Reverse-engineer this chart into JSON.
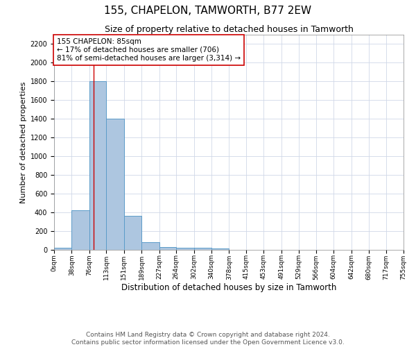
{
  "title": "155, CHAPELON, TAMWORTH, B77 2EW",
  "subtitle": "Size of property relative to detached houses in Tamworth",
  "xlabel": "Distribution of detached houses by size in Tamworth",
  "ylabel": "Number of detached properties",
  "bin_edges": [
    0,
    38,
    76,
    113,
    151,
    189,
    227,
    264,
    302,
    340,
    378,
    415,
    453,
    491,
    529,
    566,
    604,
    642,
    680,
    717,
    755
  ],
  "bar_heights": [
    20,
    420,
    1800,
    1400,
    360,
    80,
    30,
    25,
    20,
    15,
    0,
    0,
    0,
    0,
    0,
    0,
    0,
    0,
    0,
    0
  ],
  "bar_color": "#adc6e0",
  "bar_edge_color": "#5b9bc8",
  "bar_edge_width": 0.7,
  "red_line_x": 85,
  "red_line_color": "#cc0000",
  "ylim": [
    0,
    2300
  ],
  "yticks": [
    0,
    200,
    400,
    600,
    800,
    1000,
    1200,
    1400,
    1600,
    1800,
    2000,
    2200
  ],
  "annotation_text": "155 CHAPELON: 85sqm\n← 17% of detached houses are smaller (706)\n81% of semi-detached houses are larger (3,314) →",
  "annotation_fontsize": 7.5,
  "annotation_box_color": "#ffffff",
  "annotation_box_edge": "#cc0000",
  "title_fontsize": 11,
  "subtitle_fontsize": 9,
  "xlabel_fontsize": 8.5,
  "ylabel_fontsize": 8,
  "footer_text": "Contains HM Land Registry data © Crown copyright and database right 2024.\nContains public sector information licensed under the Open Government Licence v3.0.",
  "footer_fontsize": 6.5,
  "bg_color": "#ffffff",
  "grid_color": "#d0d8e8",
  "tick_label_fontsize": 6.5
}
